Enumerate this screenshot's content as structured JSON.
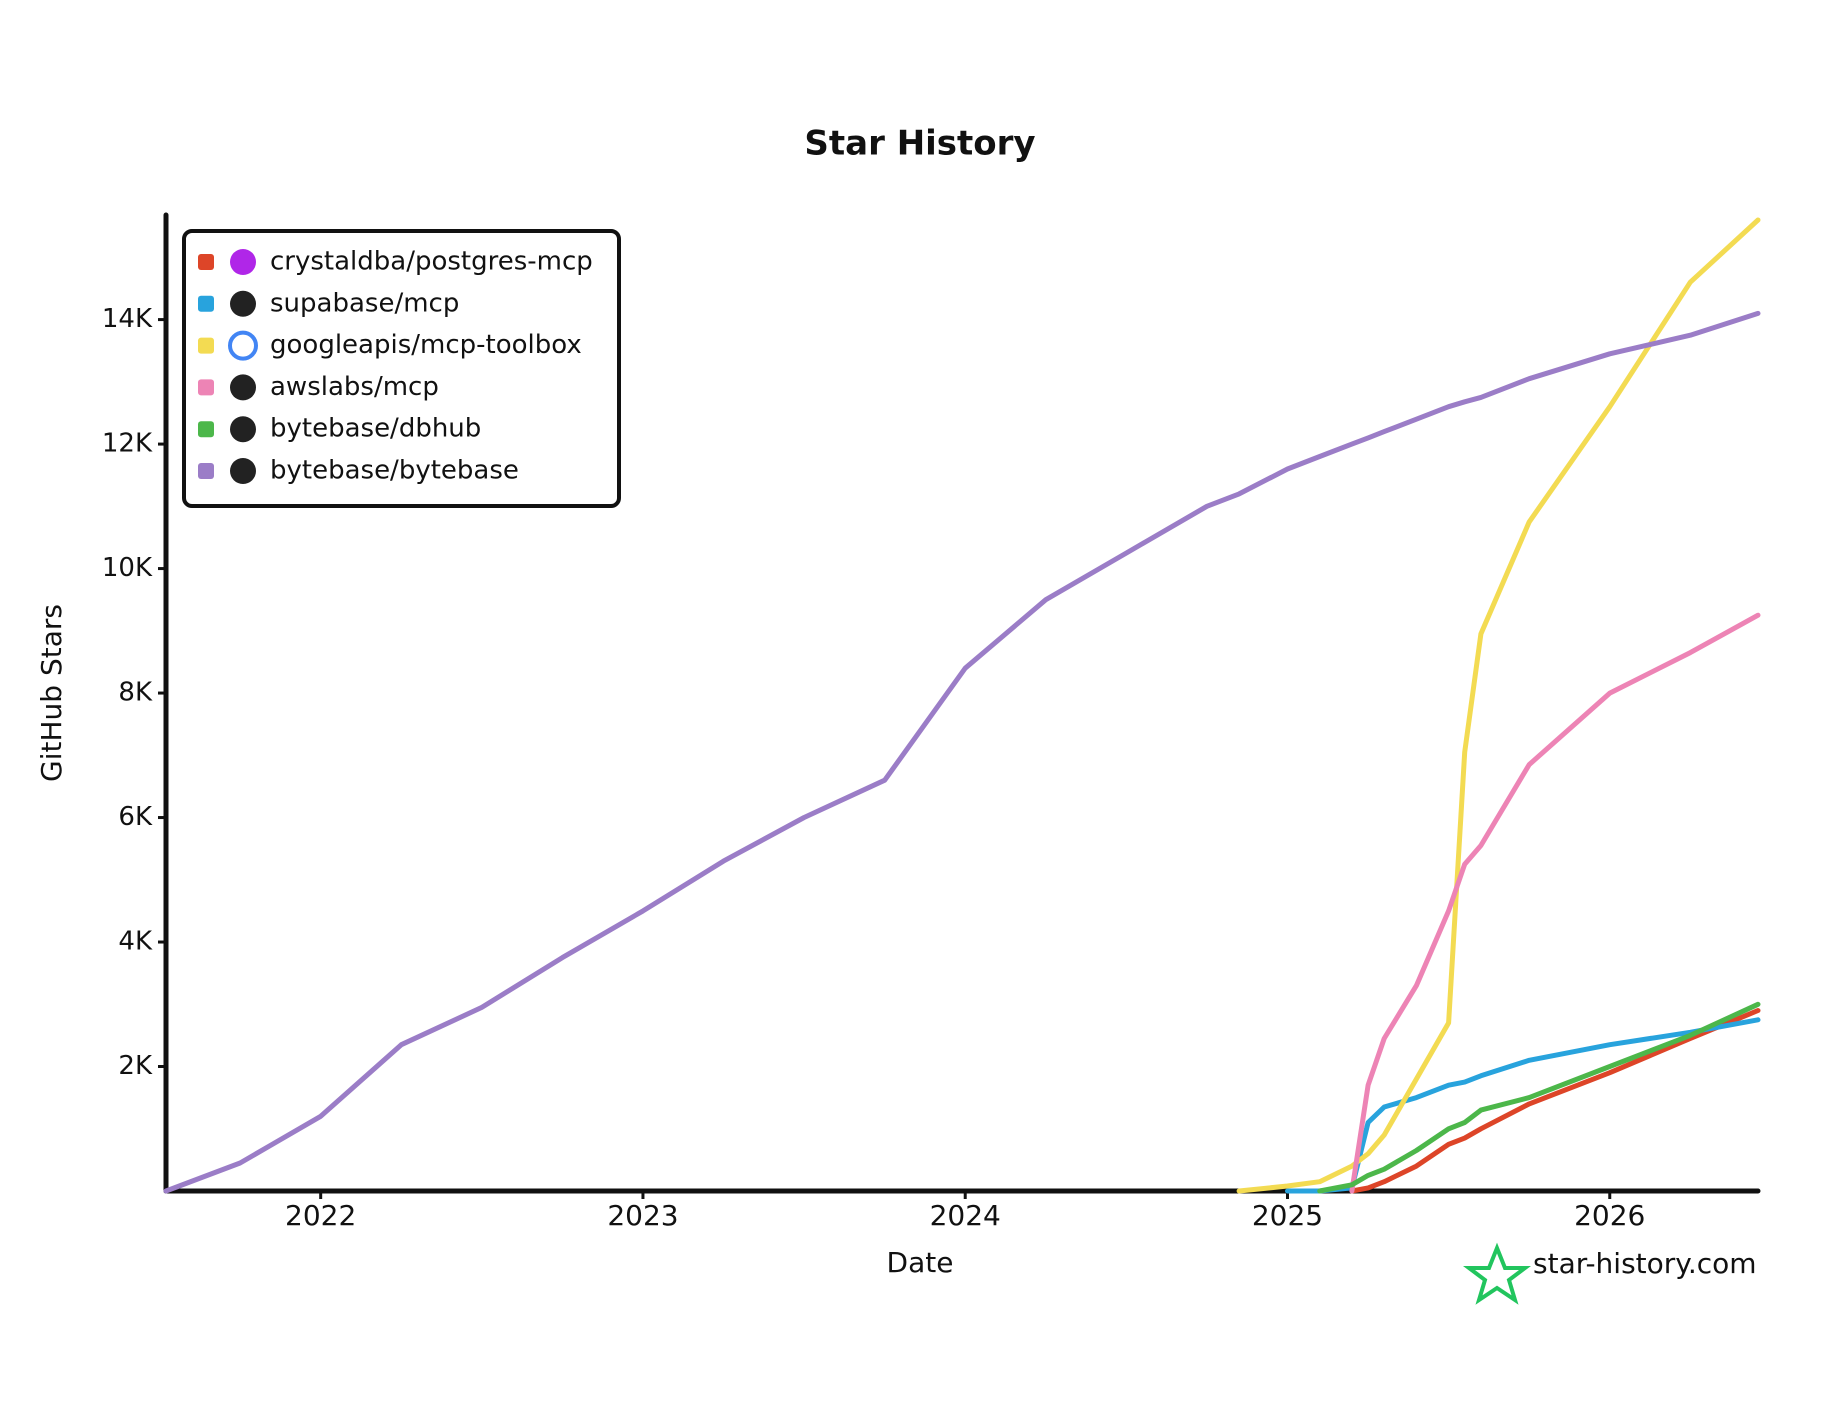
{
  "chart_data": {
    "type": "line",
    "title": "Star History",
    "x_label": "Date",
    "y_label": "GitHub Stars",
    "watermark": "star-history.com",
    "x": [
      2021.52,
      2021.75,
      2022.0,
      2022.25,
      2022.5,
      2022.75,
      2023.0,
      2023.25,
      2023.5,
      2023.75,
      2024.0,
      2024.25,
      2024.5,
      2024.75,
      2024.85,
      2025.0,
      2025.1,
      2025.2,
      2025.25,
      2025.3,
      2025.4,
      2025.5,
      2025.55,
      2025.6,
      2025.75,
      2026.0,
      2026.25,
      2026.46
    ],
    "series": [
      {
        "name": "crystaldba/postgres-mcp",
        "color": "#dd4528",
        "values": [
          null,
          null,
          null,
          null,
          null,
          null,
          null,
          null,
          null,
          null,
          null,
          null,
          null,
          null,
          null,
          null,
          null,
          0,
          50,
          150,
          400,
          750,
          850,
          1000,
          1400,
          1900,
          2450,
          2900
        ]
      },
      {
        "name": "supabase/mcp",
        "color": "#28a3dd",
        "values": [
          null,
          null,
          null,
          null,
          null,
          null,
          null,
          null,
          null,
          null,
          null,
          null,
          null,
          null,
          null,
          0,
          0,
          50,
          1100,
          1350,
          1500,
          1700,
          1750,
          1850,
          2100,
          2350,
          2550,
          2750
        ]
      },
      {
        "name": "googleapis/mcp-toolbox",
        "color": "#f3db52",
        "values": [
          null,
          null,
          null,
          null,
          null,
          null,
          null,
          null,
          null,
          null,
          null,
          null,
          null,
          null,
          0,
          80,
          150,
          400,
          600,
          900,
          1800,
          2700,
          7050,
          8950,
          10750,
          12600,
          14600,
          15600
        ]
      },
      {
        "name": "awslabs/mcp",
        "color": "#ed84b5",
        "values": [
          null,
          null,
          null,
          null,
          null,
          null,
          null,
          null,
          null,
          null,
          null,
          null,
          null,
          null,
          null,
          null,
          null,
          0,
          1700,
          2450,
          3300,
          4500,
          5250,
          5550,
          6850,
          8000,
          8650,
          9250
        ]
      },
      {
        "name": "bytebase/dbhub",
        "color": "#4cb74a",
        "values": [
          null,
          null,
          null,
          null,
          null,
          null,
          null,
          null,
          null,
          null,
          null,
          null,
          null,
          null,
          null,
          null,
          0,
          100,
          250,
          350,
          650,
          1000,
          1100,
          1300,
          1500,
          2000,
          2500,
          3000
        ]
      },
      {
        "name": "bytebase/bytebase",
        "color": "#9b7dc7",
        "values": [
          0,
          450,
          1200,
          2350,
          2950,
          3750,
          4500,
          5300,
          6000,
          6600,
          8400,
          9500,
          10250,
          11000,
          11200,
          11600,
          11800,
          12000,
          12100,
          12200,
          12400,
          12600,
          12680,
          12750,
          13050,
          13450,
          13750,
          14100
        ]
      }
    ],
    "xlim": [
      2021.52,
      2026.46
    ],
    "xticks": [
      2022,
      2023,
      2024,
      2025,
      2026
    ],
    "ylim": [
      0,
      15600
    ],
    "yticks": [
      {
        "value": 2000,
        "label": "2K"
      },
      {
        "value": 4000,
        "label": "4K"
      },
      {
        "value": 6000,
        "label": "6K"
      },
      {
        "value": 8000,
        "label": "8K"
      },
      {
        "value": 10000,
        "label": "10K"
      },
      {
        "value": 12000,
        "label": "12K"
      },
      {
        "value": 14000,
        "label": "14K"
      }
    ],
    "legend": "upper left",
    "grid": false
  }
}
